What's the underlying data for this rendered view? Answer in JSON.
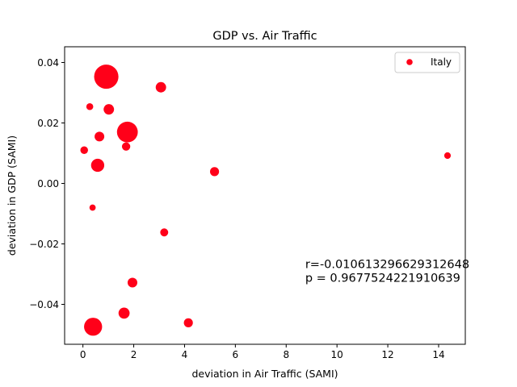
{
  "chart_data": {
    "type": "scatter",
    "title": "GDP vs. Air Traffic",
    "xlabel": "deviation in Air Traffic (SAMI)",
    "ylabel": "deviation in GDP (SAMI)",
    "xlim": [
      -0.72,
      15.05
    ],
    "ylim": [
      -0.0532,
      0.0452
    ],
    "x_ticks": [
      0,
      2,
      4,
      6,
      8,
      10,
      12,
      14
    ],
    "x_tick_labels": [
      "0",
      "2",
      "4",
      "6",
      "8",
      "10",
      "12",
      "14"
    ],
    "y_ticks": [
      -0.04,
      -0.02,
      0.0,
      0.02,
      0.04
    ],
    "y_tick_labels": [
      "−0.04",
      "−0.02",
      "0.00",
      "0.02",
      "0.04"
    ],
    "grid": false,
    "legend_position": "top-right",
    "series": [
      {
        "name": "Italy",
        "color": "#ff0019",
        "points": [
          {
            "x": 0.92,
            "y": 0.0353,
            "size": 3.5
          },
          {
            "x": 1.75,
            "y": 0.017,
            "size": 3.0
          },
          {
            "x": 0.4,
            "y": -0.0474,
            "size": 2.6
          },
          {
            "x": 0.58,
            "y": 0.006,
            "size": 1.9
          },
          {
            "x": 3.07,
            "y": 0.0318,
            "size": 1.5
          },
          {
            "x": 1.02,
            "y": 0.0245,
            "size": 1.5
          },
          {
            "x": 0.65,
            "y": 0.0155,
            "size": 1.4
          },
          {
            "x": 1.95,
            "y": -0.0328,
            "size": 1.4
          },
          {
            "x": 1.62,
            "y": -0.0429,
            "size": 1.6
          },
          {
            "x": 4.15,
            "y": -0.0461,
            "size": 1.3
          },
          {
            "x": 5.18,
            "y": 0.0039,
            "size": 1.3
          },
          {
            "x": 3.2,
            "y": -0.0162,
            "size": 1.15
          },
          {
            "x": 1.7,
            "y": 0.0122,
            "size": 1.2
          },
          {
            "x": 0.05,
            "y": 0.011,
            "size": 1.1
          },
          {
            "x": 0.27,
            "y": 0.0254,
            "size": 1.0
          },
          {
            "x": 0.38,
            "y": -0.008,
            "size": 0.9
          },
          {
            "x": 14.35,
            "y": 0.0092,
            "size": 0.95
          }
        ]
      }
    ],
    "annotation": {
      "lines": [
        "r=-0.010613296629312648",
        "p = 0.9677524221910639"
      ],
      "anchor_x": 8.75,
      "anchor_y": -0.028
    }
  }
}
